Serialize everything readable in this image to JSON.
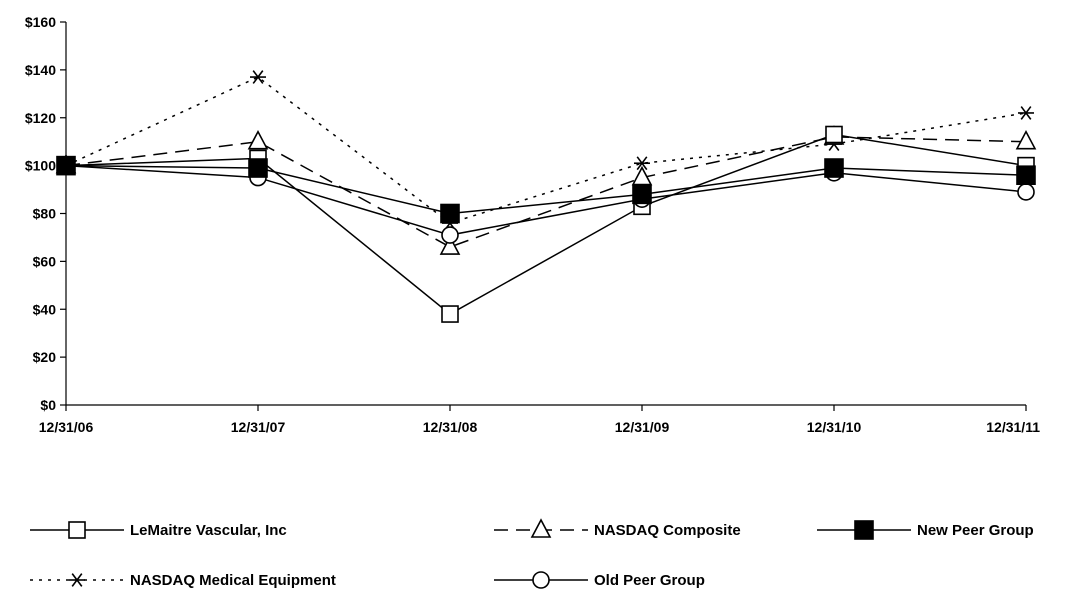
{
  "chart_data": {
    "type": "line",
    "title": "",
    "xlabel": "",
    "ylabel": "",
    "categories": [
      "12/31/06",
      "12/31/07",
      "12/31/08",
      "12/31/09",
      "12/31/10",
      "12/31/11"
    ],
    "ylim": [
      0,
      160
    ],
    "yticks": [
      0,
      20,
      40,
      60,
      80,
      100,
      120,
      140,
      160
    ],
    "ytick_labels": [
      "$0",
      "$20",
      "$40",
      "$60",
      "$80",
      "$100",
      "$120",
      "$140",
      "$160"
    ],
    "grid": false,
    "legend_position": "bottom",
    "series": [
      {
        "name": "LeMaitre Vascular, Inc",
        "values": [
          100,
          103,
          38,
          83,
          113,
          100
        ],
        "marker": "square-open",
        "dash": "solid"
      },
      {
        "name": "NASDAQ Composite",
        "values": [
          100,
          110,
          66,
          95,
          112,
          110
        ],
        "marker": "triangle-open",
        "dash": "longdash"
      },
      {
        "name": "New Peer Group",
        "values": [
          100,
          99,
          80,
          88,
          99,
          96
        ],
        "marker": "square-filled",
        "dash": "solid"
      },
      {
        "name": "NASDAQ Medical Equipment",
        "values": [
          100,
          137,
          76,
          101,
          109,
          122
        ],
        "marker": "asterisk",
        "dash": "dotted"
      },
      {
        "name": "Old Peer Group",
        "values": [
          100,
          95,
          71,
          86,
          97,
          89
        ],
        "marker": "circle-open",
        "dash": "solid"
      }
    ]
  }
}
